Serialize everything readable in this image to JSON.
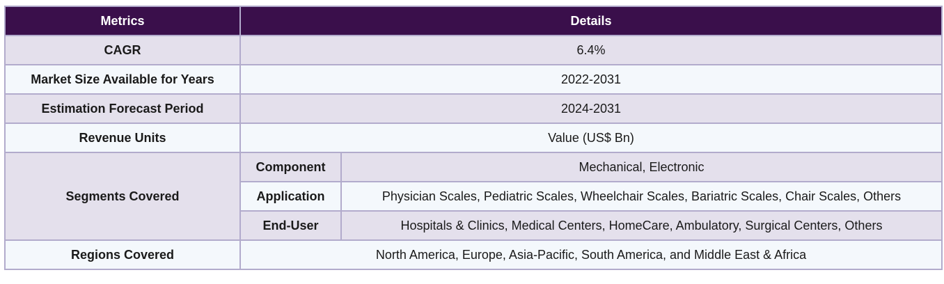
{
  "header": {
    "metrics": "Metrics",
    "details": "Details"
  },
  "rows": {
    "cagr": {
      "label": "CAGR",
      "value": "6.4%"
    },
    "market_size": {
      "label": "Market Size Available for Years",
      "value": "2022-2031"
    },
    "forecast": {
      "label": "Estimation Forecast Period",
      "value": "2024-2031"
    },
    "revenue_units": {
      "label": "Revenue Units",
      "value": "Value (US$ Bn)"
    },
    "segments": {
      "label": "Segments Covered",
      "items": [
        {
          "name": "Component",
          "value": "Mechanical, Electronic"
        },
        {
          "name": "Application",
          "value": "Physician Scales, Pediatric Scales, Wheelchair Scales, Bariatric Scales, Chair Scales, Others"
        },
        {
          "name": "End-User",
          "value": "Hospitals & Clinics, Medical Centers, HomeCare, Ambulatory, Surgical Centers, Others"
        }
      ]
    },
    "regions": {
      "label": "Regions Covered",
      "value": "North America, Europe, Asia-Pacific, South America, and Middle East & Africa"
    }
  },
  "colors": {
    "header_bg": "#3a0f4b",
    "row_shade": "#e4e0ec",
    "row_light": "#f4f8fc",
    "border": "#b2abcc"
  }
}
